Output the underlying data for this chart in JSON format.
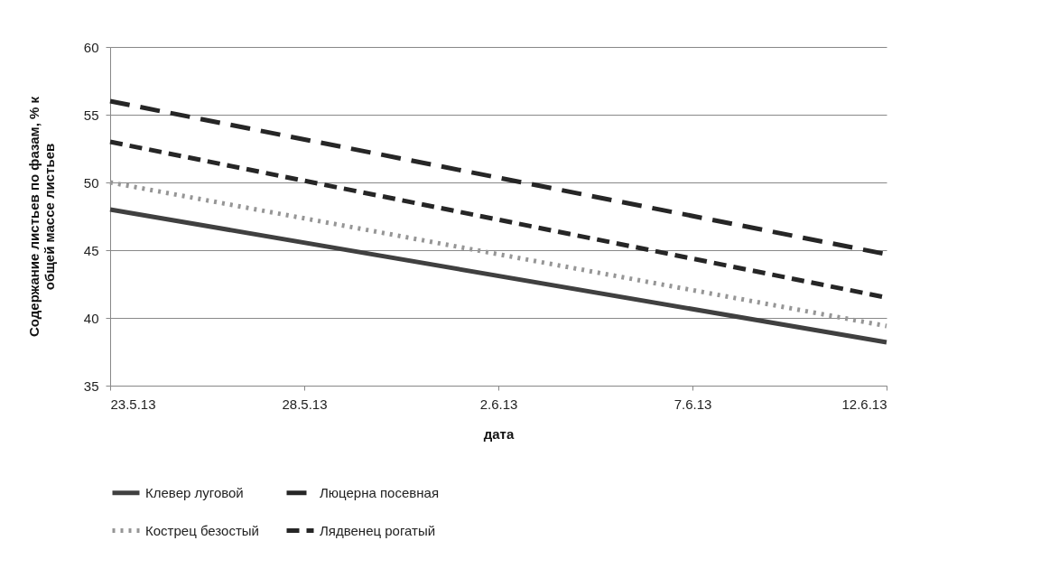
{
  "chart_data": {
    "type": "line",
    "xlabel": "дата",
    "ylabel": "Содержание листьев по фазам, % к\nобщей массе листьев",
    "x": [
      "--05-23",
      "--06-12"
    ],
    "xlim": [
      "--05-23",
      "--06-12"
    ],
    "xticks": [
      {
        "value": "--05-23",
        "label": "23.5.13"
      },
      {
        "value": "--05-28",
        "label": "28.5.13"
      },
      {
        "value": "--06-02",
        "label": "2.6.13"
      },
      {
        "value": "--06-07",
        "label": "7.6.13"
      },
      {
        "value": "--06-12",
        "label": "12.6.13"
      }
    ],
    "ylim": [
      35,
      60
    ],
    "yticks": [
      35,
      40,
      45,
      50,
      55,
      60
    ],
    "grid": "y",
    "legend": "bottom",
    "marker": "none",
    "series": [
      {
        "name": "Клевер луговой",
        "color": "#404040",
        "line_style": "solid",
        "values": [
          48,
          38.2
        ]
      },
      {
        "name": "Люцерна посевная",
        "color": "#262626",
        "line_style": "dashed",
        "values": [
          56,
          44.7
        ]
      },
      {
        "name": "Кострец безостый",
        "color": "#969696",
        "line_style": "dotted",
        "values": [
          50,
          39.4
        ]
      },
      {
        "name": "Лядвенец рогатый",
        "color": "#262626",
        "line_style": "dashed",
        "values": [
          53,
          41.5
        ]
      }
    ]
  }
}
